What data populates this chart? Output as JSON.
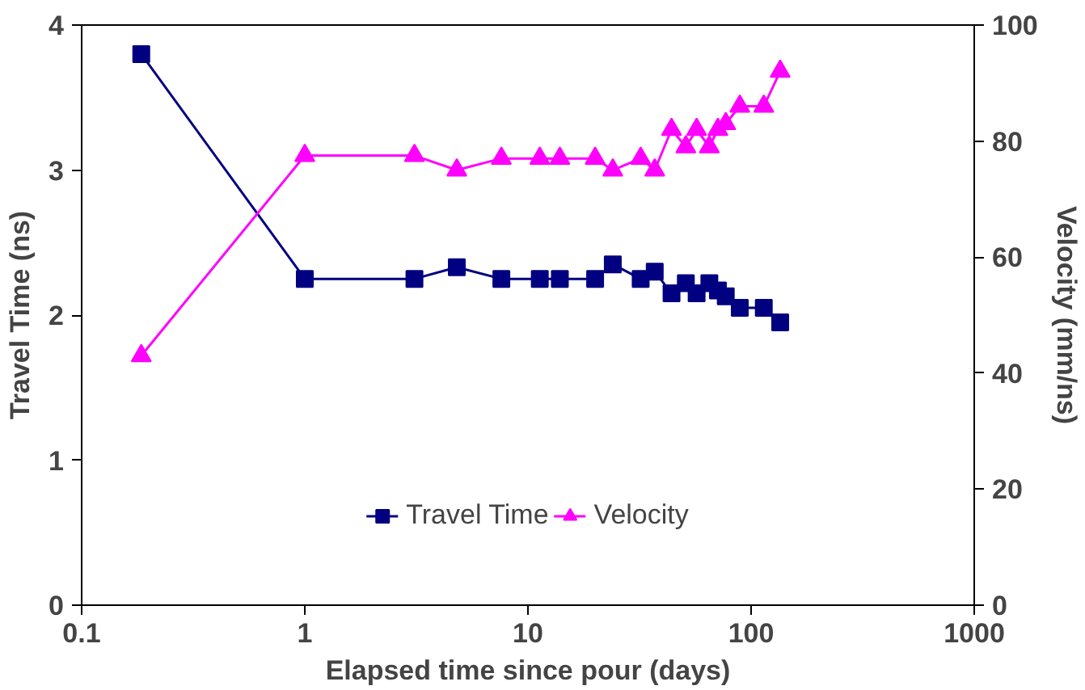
{
  "chart_data": {
    "type": "line",
    "xlabel": "Elapsed time since pour (days)",
    "ylabel": "Travel Time (ns)",
    "y2label": "Velocity (mm/ns)",
    "log": "x",
    "grid": false,
    "legend": "bottom",
    "xlim": [
      0.1,
      1000
    ],
    "xticks": [
      0.1,
      1,
      10,
      100,
      1000
    ],
    "ylim": [
      0,
      4
    ],
    "yticks": [
      0,
      1,
      2,
      3,
      4
    ],
    "y2lim": [
      0,
      100
    ],
    "y2ticks": [
      0,
      20,
      40,
      60,
      80,
      100
    ],
    "series": [
      {
        "name": "Travel Time",
        "color": "#000080",
        "marker": "square",
        "x": [
          0.185,
          1,
          3.1,
          4.8,
          7.6,
          11.3,
          13.9,
          20,
          24,
          32,
          37,
          44,
          51,
          57,
          65,
          71,
          77,
          89,
          114,
          135
        ],
        "values": [
          3.8,
          2.25,
          2.25,
          2.33,
          2.25,
          2.25,
          2.25,
          2.25,
          2.35,
          2.25,
          2.3,
          2.15,
          2.22,
          2.15,
          2.22,
          2.17,
          2.13,
          2.05,
          2.05,
          1.95
        ]
      },
      {
        "name": "Velocity",
        "color": "#ff00ff",
        "marker": "triangle",
        "axis": "y2",
        "x": [
          0.185,
          1,
          3.1,
          4.8,
          7.6,
          11.3,
          13.9,
          20,
          24,
          32,
          37,
          44,
          51,
          57,
          65,
          71,
          77,
          89,
          114,
          135
        ],
        "values": [
          43,
          77.5,
          77.5,
          75,
          77,
          77,
          77,
          77,
          75,
          77,
          75,
          82,
          79,
          82,
          79,
          82,
          83,
          86,
          86,
          92
        ]
      }
    ]
  }
}
